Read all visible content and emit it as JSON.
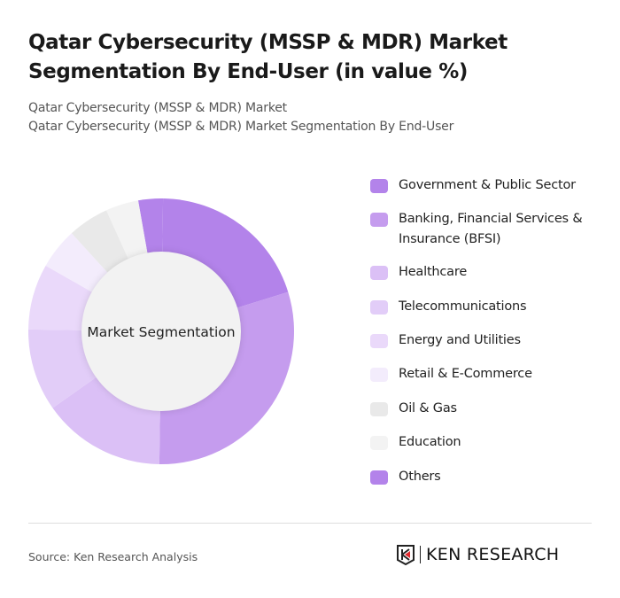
{
  "title": "Qatar Cybersecurity (MSSP & MDR) Market Segmentation By End-User (in value %)",
  "breadcrumb": [
    "Qatar Cybersecurity (MSSP & MDR) Market",
    "Qatar Cybersecurity (MSSP & MDR) Market Segmentation By End-User"
  ],
  "source": "Source: Ken Research Analysis",
  "logo_text": "KEN RESEARCH",
  "chart_data": {
    "type": "pie",
    "variant": "donut",
    "center_label": "Market Segmentation",
    "legend_position": "right",
    "unit": "%",
    "start_angle_deg": -10,
    "slices": [
      {
        "label": "Others",
        "value": 3,
        "color": "#b383ea",
        "legend_index": 8
      },
      {
        "label": "Government & Public Sector",
        "value": 20,
        "color": "#b383ea",
        "legend_index": 0
      },
      {
        "label": "Banking, Financial Services & Insurance (BFSI)",
        "value": 30,
        "color": "#c59cee",
        "legend_index": 1
      },
      {
        "label": "Healthcare",
        "value": 15,
        "color": "#dbc0f6",
        "legend_index": 2
      },
      {
        "label": "Telecommunications",
        "value": 10,
        "color": "#e2cdf8",
        "legend_index": 3
      },
      {
        "label": "Energy and Utilities",
        "value": 8,
        "color": "#ead9fa",
        "legend_index": 4
      },
      {
        "label": "Retail & E-Commerce",
        "value": 5,
        "color": "#f3ecfc",
        "legend_index": 5
      },
      {
        "label": "Oil & Gas",
        "value": 5,
        "color": "#e9e9e9",
        "legend_index": 6
      },
      {
        "label": "Education",
        "value": 4,
        "color": "#f3f3f3",
        "legend_index": 7
      }
    ],
    "legend": [
      {
        "label": "Government & Public Sector",
        "color": "#b383ea"
      },
      {
        "label": "Banking, Financial Services & Insurance (BFSI)",
        "color": "#c59cee"
      },
      {
        "label": "Healthcare",
        "color": "#dbc0f6"
      },
      {
        "label": "Telecommunications",
        "color": "#e2cdf8"
      },
      {
        "label": "Energy and Utilities",
        "color": "#ead9fa"
      },
      {
        "label": "Retail & E-Commerce",
        "color": "#f3ecfc"
      },
      {
        "label": "Oil & Gas",
        "color": "#e9e9e9"
      },
      {
        "label": "Education",
        "color": "#f3f3f3"
      },
      {
        "label": "Others",
        "color": "#b383ea"
      }
    ]
  }
}
